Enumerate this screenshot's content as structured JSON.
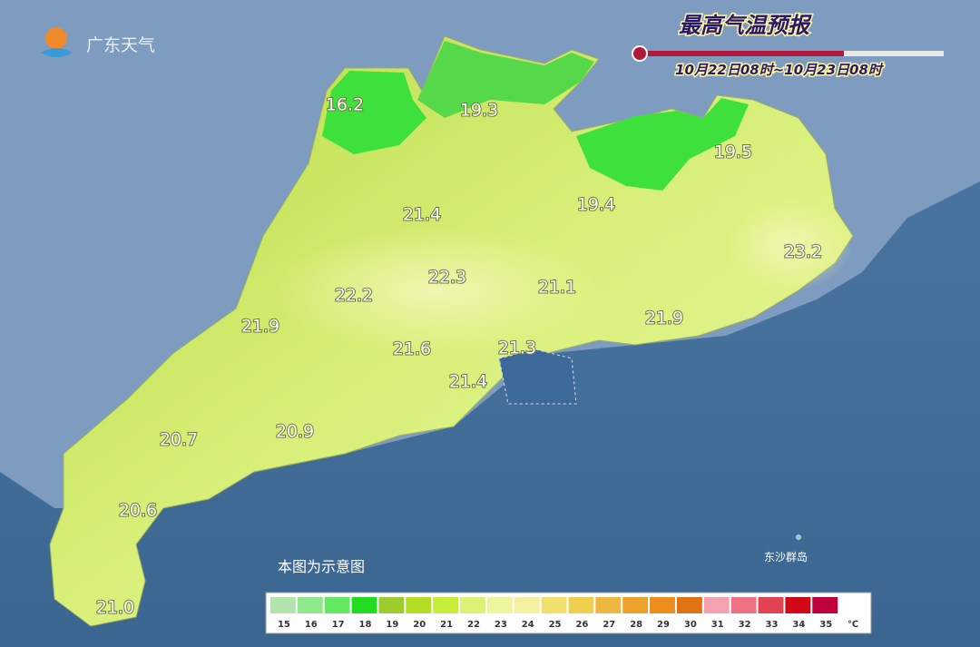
{
  "header": {
    "logo": "广东天气",
    "title": "最高气温预报",
    "period": "10月22日08时~10月23日08时"
  },
  "temperatures": [
    "16.2",
    "19.3",
    "19.5",
    "19.4",
    "21.4",
    "23.2",
    "22.3",
    "22.2",
    "21.1",
    "21.9",
    "21.9",
    "21.6",
    "21.3",
    "21.4",
    "20.7",
    "20.9",
    "20.6",
    "21.0"
  ],
  "notes": {
    "schematic": "本图为示意图",
    "islands": "东沙群岛",
    "watermark": "@广东天气"
  },
  "legend": {
    "unit": "℃",
    "ticks": [
      15,
      16,
      17,
      18,
      19,
      20,
      21,
      22,
      23,
      24,
      25,
      26,
      27,
      28,
      29,
      30,
      31,
      32,
      33,
      34,
      35
    ],
    "colors": [
      "#b4e4ae",
      "#8fe889",
      "#64e862",
      "#22dc22",
      "#9ccc2e",
      "#b2dd22",
      "#c8ee3c",
      "#dcf276",
      "#eef59c",
      "#f5f0a0",
      "#f1e06c",
      "#eed04e",
      "#eeb840",
      "#eea22e",
      "#ec8e1e",
      "#e07414",
      "#f4a2b2",
      "#ee7284",
      "#e24252",
      "#d00818",
      "#c0003a"
    ]
  }
}
